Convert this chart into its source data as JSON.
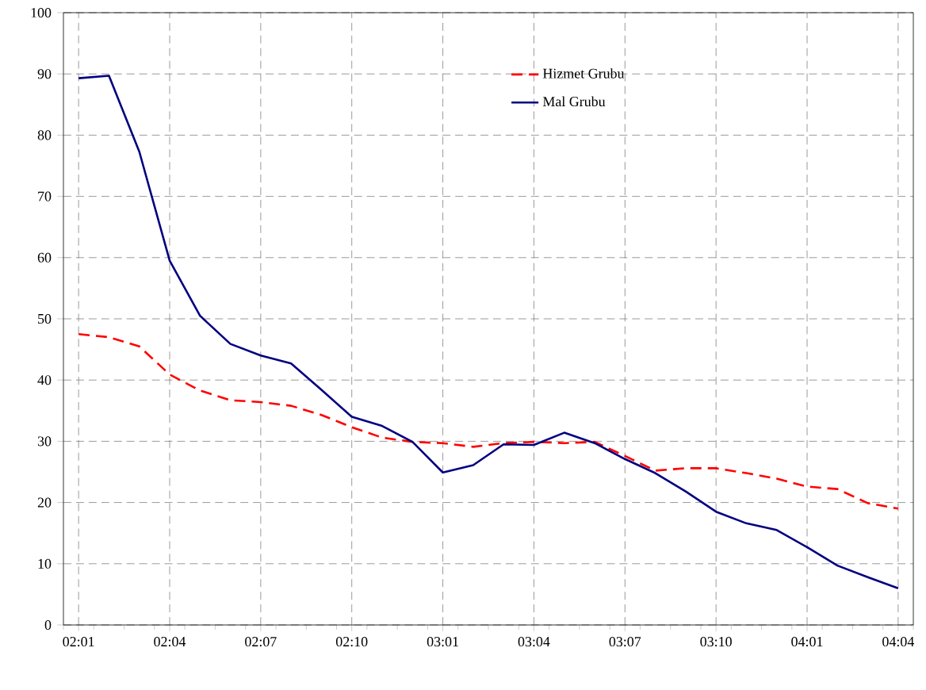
{
  "chart_data": {
    "type": "line",
    "categories": [
      "02:01",
      null,
      null,
      "02:04",
      null,
      null,
      "02:07",
      null,
      null,
      "02:10",
      null,
      null,
      "03:01",
      null,
      null,
      "03:04",
      null,
      null,
      "03:07",
      null,
      null,
      "03:10",
      null,
      null,
      "04:01",
      null,
      null,
      "04:04"
    ],
    "series": [
      {
        "name": "Hizmet Grubu",
        "color": "#ff0000",
        "line_style": "dashed",
        "values": [
          47.5,
          47.0,
          45.5,
          40.9,
          38.3,
          36.7,
          36.4,
          35.8,
          34.3,
          32.3,
          30.6,
          29.9,
          29.7,
          29.1,
          29.7,
          29.9,
          29.7,
          29.9,
          27.6,
          25.2,
          25.6,
          25.6,
          24.8,
          23.9,
          22.6,
          22.2,
          19.9,
          19.0
        ]
      },
      {
        "name": "Mal Grubu",
        "color": "#000080",
        "line_style": "solid",
        "values": [
          89.3,
          89.7,
          77.3,
          59.5,
          50.5,
          45.9,
          44.0,
          42.7,
          38.4,
          34.0,
          32.5,
          29.9,
          24.9,
          26.1,
          29.5,
          29.4,
          31.4,
          29.7,
          27.1,
          24.8,
          21.8,
          18.5,
          16.6,
          15.5,
          12.7,
          9.7,
          7.8,
          6.0
        ]
      }
    ],
    "ylim": [
      0,
      100
    ],
    "yticks": [
      0,
      10,
      20,
      30,
      40,
      50,
      60,
      70,
      80,
      90,
      100
    ],
    "grid": true,
    "legend": "top right",
    "marker": "none"
  }
}
